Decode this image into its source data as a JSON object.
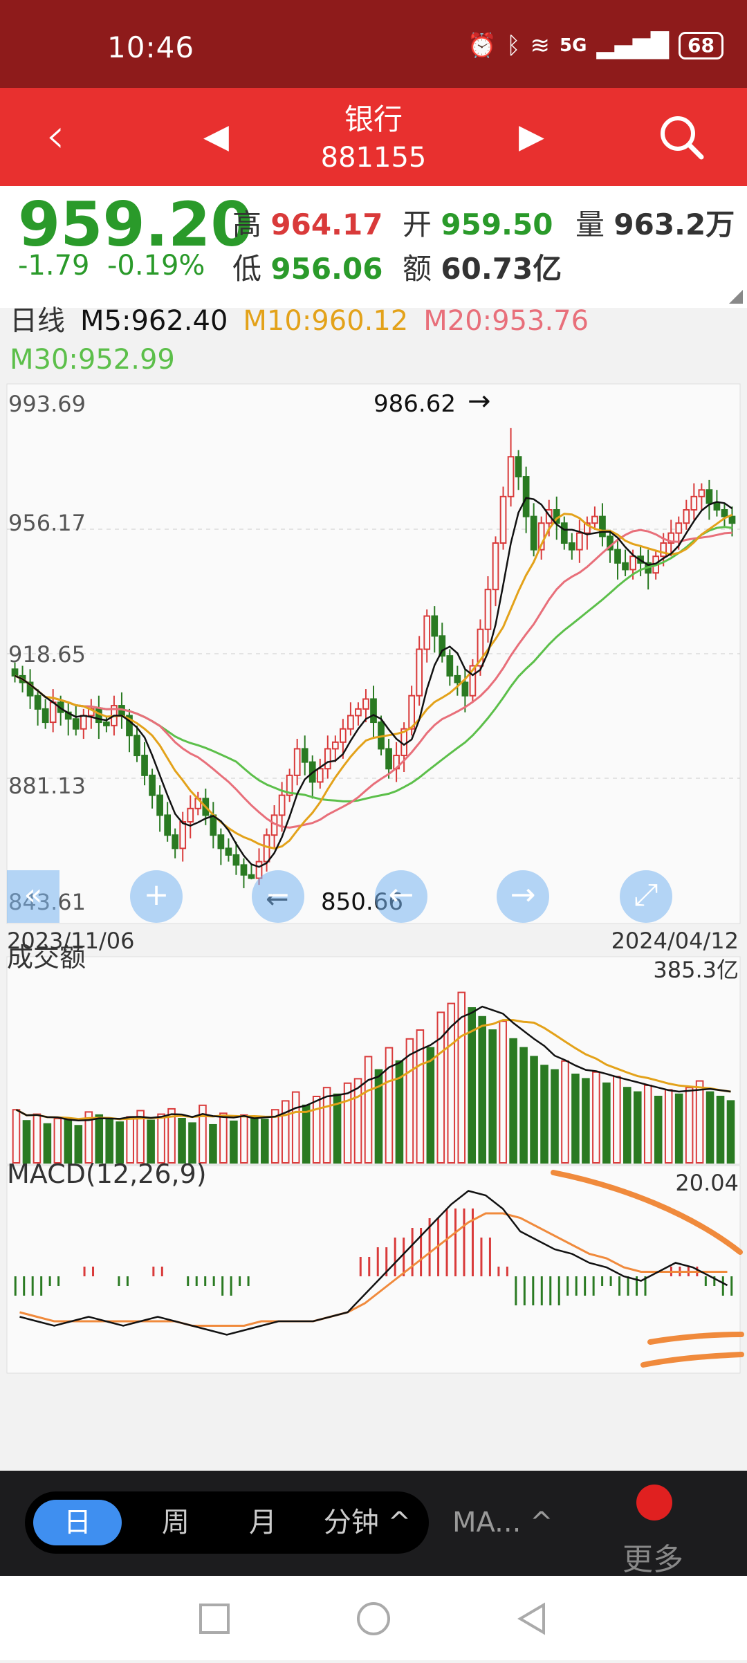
{
  "status_bar": {
    "time": "10:46",
    "network": "5G",
    "battery": "68"
  },
  "header": {
    "title": "银行",
    "code": "881155"
  },
  "quote": {
    "price": "959.20",
    "change": "-1.79",
    "change_pct": "-0.19%",
    "high_label": "高",
    "high": "964.17",
    "open_label": "开",
    "open": "959.50",
    "volume_label": "量",
    "volume": "963.2万",
    "low_label": "低",
    "low": "956.06",
    "amount_label": "额",
    "amount": "60.73亿"
  },
  "ma_legend": {
    "period": "日线",
    "m5": "M5:962.40",
    "m10": "M10:960.12",
    "m20": "M20:953.76",
    "m30": "M30:952.99"
  },
  "colors": {
    "up": "#d93a3a",
    "down": "#2a7a22",
    "m5": "#111111",
    "m10": "#e3a21a",
    "m20": "#e86f7a",
    "m30": "#5cbf4a",
    "accent": "#3f8ff0"
  },
  "chart_data": [
    {
      "type": "candlestick",
      "title": "日线",
      "x_start": "2023/11/06",
      "x_end": "2024/04/12",
      "y_ticks": [
        "993.69",
        "956.17",
        "918.65",
        "881.13",
        "843.61"
      ],
      "ylim": [
        843.61,
        993.69
      ],
      "annotations": {
        "max": "986.62",
        "min": "850.66"
      },
      "series_names": [
        "M5",
        "M10",
        "M20",
        "M30"
      ],
      "closes": [
        912,
        910,
        906,
        902,
        898,
        904,
        901,
        899,
        896,
        900,
        902,
        898,
        897,
        903,
        900,
        894,
        888,
        882,
        876,
        870,
        864,
        860,
        868,
        872,
        875,
        870,
        864,
        860,
        858,
        855,
        852,
        851,
        856,
        864,
        870,
        876,
        882,
        890,
        886,
        880,
        884,
        890,
        892,
        896,
        900,
        902,
        905,
        898,
        890,
        884,
        888,
        896,
        906,
        920,
        930,
        924,
        918,
        912,
        910,
        906,
        915,
        926,
        938,
        952,
        966,
        978,
        972,
        960,
        950,
        958,
        962,
        958,
        952,
        950,
        955,
        958,
        960,
        954,
        950,
        946,
        944,
        948,
        946,
        943,
        948,
        952,
        955,
        958,
        962,
        966,
        968,
        964,
        962,
        960,
        958
      ]
    },
    {
      "type": "bar",
      "title": "成交额",
      "max_label": "385.3亿",
      "values": [
        120,
        95,
        110,
        88,
        100,
        96,
        84,
        115,
        108,
        98,
        92,
        104,
        118,
        96,
        110,
        122,
        100,
        90,
        130,
        86,
        112,
        94,
        108,
        102,
        98,
        120,
        140,
        160,
        130,
        150,
        170,
        155,
        180,
        190,
        240,
        210,
        260,
        230,
        280,
        300,
        260,
        340,
        360,
        385,
        350,
        330,
        300,
        320,
        280,
        260,
        240,
        220,
        210,
        230,
        200,
        190,
        205,
        180,
        195,
        170,
        160,
        175,
        150,
        165,
        155,
        170,
        185,
        160,
        150,
        140
      ]
    },
    {
      "type": "line",
      "title": "MACD(12,26,9)",
      "max_label": "20.04",
      "dif": [
        -9,
        -10,
        -11,
        -10,
        -9,
        -10,
        -11,
        -10,
        -9,
        -10,
        -11,
        -12,
        -13,
        -12,
        -11,
        -10,
        -10,
        -10,
        -9,
        -8,
        -4,
        0,
        4,
        8,
        12,
        16,
        19,
        18,
        15,
        10,
        8,
        6,
        5,
        3,
        2,
        0,
        -1,
        1,
        3,
        2,
        0,
        -2
      ],
      "dea": [
        -8,
        -9,
        -10,
        -10,
        -10,
        -10,
        -10,
        -10,
        -10,
        -10,
        -11,
        -11,
        -11,
        -11,
        -10,
        -10,
        -10,
        -10,
        -9,
        -8,
        -6,
        -3,
        0,
        3,
        6,
        9,
        12,
        14,
        14,
        13,
        11,
        9,
        7,
        5,
        4,
        2,
        1,
        1,
        1,
        1,
        1,
        1
      ],
      "hist": [
        -2,
        -2,
        -1,
        0,
        1,
        0,
        -1,
        0,
        1,
        0,
        -1,
        -1,
        -2,
        -1,
        0,
        0,
        0,
        0,
        0,
        0,
        2,
        3,
        4,
        5,
        6,
        7,
        7,
        4,
        1,
        -3,
        -3,
        -3,
        -2,
        -2,
        -1,
        -2,
        -2,
        0,
        1,
        1,
        -1,
        -2
      ]
    }
  ],
  "toolbar": {
    "zoom_in": "+",
    "zoom_out": "−",
    "prev": "←",
    "next": "→"
  },
  "period_tabs": {
    "day": "日",
    "week": "周",
    "month": "月",
    "minute": "分钟 ^",
    "ma": "MA... ^",
    "more": "更多"
  }
}
